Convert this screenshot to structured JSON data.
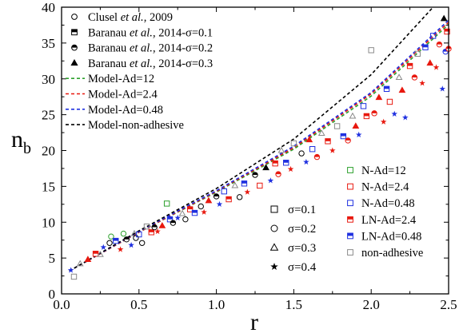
{
  "chart_data": {
    "type": "scatter",
    "xlabel": "r",
    "ylabel": "n",
    "ylabel_sub": "b",
    "xlim": [
      0.0,
      2.5
    ],
    "ylim": [
      0,
      40
    ],
    "x_ticks": [
      "0.0",
      "0.5",
      "1.0",
      "1.5",
      "2.0",
      "2.5"
    ],
    "y_ticks": [
      "0",
      "5",
      "10",
      "15",
      "20",
      "25",
      "30",
      "35",
      "40"
    ],
    "grid": false,
    "colors": {
      "green": "#2ca02c",
      "red": "#e8190f",
      "blue": "#1f30e0",
      "black": "#000000",
      "gray": "#8a8a8a"
    },
    "legend_top_left": [
      {
        "label_pre": "Clusel ",
        "label_it": "et al.",
        "label_post": ", 2009",
        "marker": "circle-open",
        "color": "black"
      },
      {
        "label_pre": "Baranau ",
        "label_it": "et al.",
        "label_post": ", 2014-σ=0.1",
        "marker": "square-half",
        "color": "black"
      },
      {
        "label_pre": "Baranau ",
        "label_it": "et al.",
        "label_post": ", 2014-σ=0.2",
        "marker": "circle-half",
        "color": "black"
      },
      {
        "label_pre": "Baranau ",
        "label_it": "et al.",
        "label_post": ", 2014-σ=0.3",
        "marker": "triangle-filled",
        "color": "black"
      },
      {
        "label": "Model-Ad=12",
        "line": "dashed",
        "color": "green"
      },
      {
        "label": "Model-Ad=2.4",
        "line": "dashed",
        "color": "red"
      },
      {
        "label": "Model-Ad=0.48",
        "line": "dashed",
        "color": "blue"
      },
      {
        "label": "Model-non-adhesive",
        "line": "dashed",
        "color": "black"
      }
    ],
    "legend_sigma": [
      {
        "label": "σ=0.1",
        "marker": "square-open"
      },
      {
        "label": "σ=0.2",
        "marker": "circle-open"
      },
      {
        "label": "σ=0.3",
        "marker": "triangle-open"
      },
      {
        "label": "σ=0.4",
        "marker": "star"
      }
    ],
    "legend_bottom_right": [
      {
        "label": "N-Ad=12",
        "marker": "square-open",
        "color": "green"
      },
      {
        "label": "N-Ad=2.4",
        "marker": "square-open",
        "color": "red"
      },
      {
        "label": "N-Ad=0.48",
        "marker": "square-open",
        "color": "blue"
      },
      {
        "label": "LN-Ad=2.4",
        "marker": "square-half",
        "color": "red"
      },
      {
        "label": "LN-Ad=0.48",
        "marker": "square-half",
        "color": "blue"
      },
      {
        "label": "non-adhesive",
        "marker": "square-open",
        "color": "gray"
      }
    ],
    "series": [
      {
        "style": "dashed",
        "color": "green",
        "x": [
          0.05,
          0.5,
          1.0,
          1.5,
          2.0,
          2.5
        ],
        "y": [
          3.2,
          8.6,
          14.2,
          20.2,
          27.6,
          37.6
        ]
      },
      {
        "style": "dashed",
        "color": "red",
        "x": [
          0.05,
          0.5,
          1.0,
          1.5,
          2.0,
          2.5
        ],
        "y": [
          3.2,
          8.6,
          14.3,
          20.4,
          27.9,
          37.9
        ]
      },
      {
        "style": "dashed",
        "color": "blue",
        "x": [
          0.05,
          0.5,
          1.0,
          1.5,
          2.0,
          2.5
        ],
        "y": [
          3.2,
          8.7,
          14.4,
          20.6,
          28.1,
          38.2
        ]
      },
      {
        "style": "dashed",
        "color": "black",
        "x": [
          0.05,
          0.5,
          1.0,
          1.5,
          2.0,
          2.4
        ],
        "y": [
          3.2,
          8.8,
          14.7,
          21.6,
          30.6,
          40.0
        ]
      }
    ],
    "points": [
      {
        "x": 0.06,
        "y": 3.3,
        "marker": "star",
        "color": "blue"
      },
      {
        "x": 0.08,
        "y": 2.4,
        "marker": "square-open",
        "color": "gray"
      },
      {
        "x": 0.12,
        "y": 4.2,
        "marker": "triangle-open",
        "color": "gray"
      },
      {
        "x": 0.17,
        "y": 4.8,
        "marker": "triangle-filled",
        "color": "red"
      },
      {
        "x": 0.22,
        "y": 5.6,
        "marker": "square-half",
        "color": "red"
      },
      {
        "x": 0.25,
        "y": 5.5,
        "marker": "triangle-open",
        "color": "gray"
      },
      {
        "x": 0.27,
        "y": 6.5,
        "marker": "star",
        "color": "blue"
      },
      {
        "x": 0.31,
        "y": 7.1,
        "marker": "circle-open",
        "color": "black"
      },
      {
        "x": 0.32,
        "y": 8.0,
        "marker": "circle-open",
        "color": "green"
      },
      {
        "x": 0.35,
        "y": 7.4,
        "marker": "square-half",
        "color": "blue"
      },
      {
        "x": 0.38,
        "y": 6.2,
        "marker": "star",
        "color": "red"
      },
      {
        "x": 0.4,
        "y": 8.4,
        "marker": "circle-open",
        "color": "green"
      },
      {
        "x": 0.42,
        "y": 7.6,
        "marker": "circle-half",
        "color": "black"
      },
      {
        "x": 0.45,
        "y": 6.8,
        "marker": "star",
        "color": "blue"
      },
      {
        "x": 0.47,
        "y": 8.4,
        "marker": "triangle-open",
        "color": "gray"
      },
      {
        "x": 0.48,
        "y": 7.8,
        "marker": "circle-open",
        "color": "black"
      },
      {
        "x": 0.5,
        "y": 8.3,
        "marker": "square-open",
        "color": "blue"
      },
      {
        "x": 0.52,
        "y": 7.1,
        "marker": "circle-open",
        "color": "black"
      },
      {
        "x": 0.55,
        "y": 9.4,
        "marker": "square-open",
        "color": "gray"
      },
      {
        "x": 0.58,
        "y": 8.6,
        "marker": "square-half",
        "color": "red"
      },
      {
        "x": 0.6,
        "y": 9.3,
        "marker": "circle-half",
        "color": "black"
      },
      {
        "x": 0.62,
        "y": 8.7,
        "marker": "star",
        "color": "red"
      },
      {
        "x": 0.65,
        "y": 9.5,
        "marker": "triangle-filled",
        "color": "red"
      },
      {
        "x": 0.68,
        "y": 12.6,
        "marker": "square-open",
        "color": "green"
      },
      {
        "x": 0.7,
        "y": 10.4,
        "marker": "square-half",
        "color": "blue"
      },
      {
        "x": 0.72,
        "y": 9.9,
        "marker": "circle-half",
        "color": "black"
      },
      {
        "x": 0.75,
        "y": 10.6,
        "marker": "star",
        "color": "blue"
      },
      {
        "x": 0.78,
        "y": 11.2,
        "marker": "triangle-open",
        "color": "gray"
      },
      {
        "x": 0.8,
        "y": 10.4,
        "marker": "circle-open",
        "color": "black"
      },
      {
        "x": 0.83,
        "y": 11.8,
        "marker": "square-half",
        "color": "red"
      },
      {
        "x": 0.86,
        "y": 11.3,
        "marker": "square-half",
        "color": "blue"
      },
      {
        "x": 0.9,
        "y": 12.2,
        "marker": "circle-open",
        "color": "black"
      },
      {
        "x": 0.92,
        "y": 11.4,
        "marker": "star",
        "color": "red"
      },
      {
        "x": 0.95,
        "y": 13.0,
        "marker": "triangle-filled",
        "color": "red"
      },
      {
        "x": 1.0,
        "y": 13.6,
        "marker": "circle-half",
        "color": "black"
      },
      {
        "x": 1.02,
        "y": 12.5,
        "marker": "star",
        "color": "blue"
      },
      {
        "x": 1.05,
        "y": 14.3,
        "marker": "square-open",
        "color": "blue"
      },
      {
        "x": 1.08,
        "y": 13.2,
        "marker": "square-half",
        "color": "red"
      },
      {
        "x": 1.12,
        "y": 15.1,
        "marker": "triangle-open",
        "color": "gray"
      },
      {
        "x": 1.15,
        "y": 13.5,
        "marker": "circle-open",
        "color": "black"
      },
      {
        "x": 1.18,
        "y": 15.4,
        "marker": "square-half",
        "color": "blue"
      },
      {
        "x": 1.2,
        "y": 14.2,
        "marker": "star",
        "color": "red"
      },
      {
        "x": 1.25,
        "y": 16.6,
        "marker": "circle-half",
        "color": "black"
      },
      {
        "x": 1.28,
        "y": 15.1,
        "marker": "square-open",
        "color": "red"
      },
      {
        "x": 1.32,
        "y": 17.6,
        "marker": "triangle-filled",
        "color": "black"
      },
      {
        "x": 1.35,
        "y": 15.8,
        "marker": "star",
        "color": "blue"
      },
      {
        "x": 1.38,
        "y": 18.2,
        "marker": "square-half",
        "color": "red"
      },
      {
        "x": 1.4,
        "y": 16.7,
        "marker": "circle-half",
        "color": "red"
      },
      {
        "x": 1.42,
        "y": 20.0,
        "marker": "triangle-open",
        "color": "gray"
      },
      {
        "x": 1.45,
        "y": 18.3,
        "marker": "square-half",
        "color": "blue"
      },
      {
        "x": 1.48,
        "y": 17.4,
        "marker": "star",
        "color": "red"
      },
      {
        "x": 1.5,
        "y": 21.0,
        "marker": "square-open",
        "color": "gray"
      },
      {
        "x": 1.55,
        "y": 19.6,
        "marker": "circle-open",
        "color": "black"
      },
      {
        "x": 1.58,
        "y": 18.4,
        "marker": "star",
        "color": "blue"
      },
      {
        "x": 1.6,
        "y": 21.5,
        "marker": "triangle-filled",
        "color": "red"
      },
      {
        "x": 1.62,
        "y": 20.2,
        "marker": "square-open",
        "color": "blue"
      },
      {
        "x": 1.65,
        "y": 19.1,
        "marker": "circle-half",
        "color": "red"
      },
      {
        "x": 1.68,
        "y": 22.4,
        "marker": "triangle-open",
        "color": "gray"
      },
      {
        "x": 1.72,
        "y": 21.3,
        "marker": "square-half",
        "color": "red"
      },
      {
        "x": 1.75,
        "y": 20.0,
        "marker": "star",
        "color": "red"
      },
      {
        "x": 1.78,
        "y": 23.4,
        "marker": "square-open",
        "color": "gray"
      },
      {
        "x": 1.82,
        "y": 22.0,
        "marker": "square-half",
        "color": "blue"
      },
      {
        "x": 1.85,
        "y": 21.4,
        "marker": "circle-half",
        "color": "red"
      },
      {
        "x": 1.88,
        "y": 24.8,
        "marker": "triangle-open",
        "color": "gray"
      },
      {
        "x": 1.9,
        "y": 23.4,
        "marker": "triangle-filled",
        "color": "red"
      },
      {
        "x": 1.92,
        "y": 22.2,
        "marker": "star",
        "color": "blue"
      },
      {
        "x": 1.95,
        "y": 26.2,
        "marker": "square-open",
        "color": "blue"
      },
      {
        "x": 1.97,
        "y": 24.8,
        "marker": "square-half",
        "color": "red"
      },
      {
        "x": 2.0,
        "y": 34.0,
        "marker": "square-open",
        "color": "gray"
      },
      {
        "x": 2.02,
        "y": 25.2,
        "marker": "circle-half",
        "color": "red"
      },
      {
        "x": 2.05,
        "y": 27.4,
        "marker": "triangle-filled",
        "color": "red"
      },
      {
        "x": 2.08,
        "y": 24.0,
        "marker": "star",
        "color": "red"
      },
      {
        "x": 2.1,
        "y": 28.6,
        "marker": "square-half",
        "color": "blue"
      },
      {
        "x": 2.12,
        "y": 26.8,
        "marker": "square-open",
        "color": "red"
      },
      {
        "x": 2.15,
        "y": 25.1,
        "marker": "star",
        "color": "blue"
      },
      {
        "x": 2.18,
        "y": 30.2,
        "marker": "triangle-open",
        "color": "gray"
      },
      {
        "x": 2.2,
        "y": 28.4,
        "marker": "triangle-filled",
        "color": "red"
      },
      {
        "x": 2.22,
        "y": 24.6,
        "marker": "star",
        "color": "blue"
      },
      {
        "x": 2.25,
        "y": 31.8,
        "marker": "square-half",
        "color": "red"
      },
      {
        "x": 2.28,
        "y": 30.2,
        "marker": "circle-half",
        "color": "red"
      },
      {
        "x": 2.3,
        "y": 33.5,
        "marker": "square-open",
        "color": "gray"
      },
      {
        "x": 2.33,
        "y": 29.4,
        "marker": "star",
        "color": "red"
      },
      {
        "x": 2.35,
        "y": 34.4,
        "marker": "square-half",
        "color": "blue"
      },
      {
        "x": 2.38,
        "y": 32.2,
        "marker": "triangle-filled",
        "color": "red"
      },
      {
        "x": 2.4,
        "y": 36.0,
        "marker": "square-open",
        "color": "blue"
      },
      {
        "x": 2.42,
        "y": 31.6,
        "marker": "star",
        "color": "red"
      },
      {
        "x": 2.44,
        "y": 34.8,
        "marker": "circle-half",
        "color": "red"
      },
      {
        "x": 2.46,
        "y": 28.6,
        "marker": "star",
        "color": "blue"
      },
      {
        "x": 2.47,
        "y": 38.4,
        "marker": "triangle-filled",
        "color": "black"
      },
      {
        "x": 2.48,
        "y": 33.8,
        "marker": "circle-half",
        "color": "blue"
      },
      {
        "x": 2.49,
        "y": 36.6,
        "marker": "square-half",
        "color": "red"
      },
      {
        "x": 2.5,
        "y": 34.2,
        "marker": "circle-half",
        "color": "red"
      }
    ]
  }
}
